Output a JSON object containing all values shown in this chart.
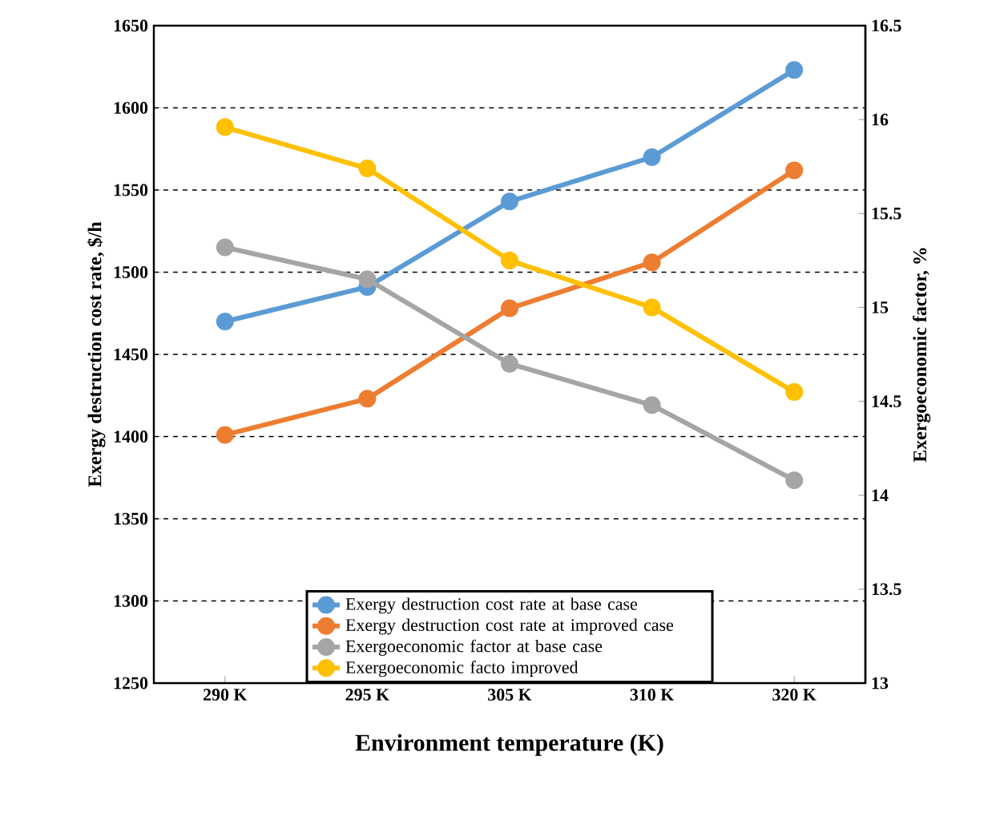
{
  "chart_data": {
    "type": "line",
    "xlabel": "Environment temperature (K)",
    "ylabel": "Exergy destruction cost rate, $/h",
    "y2label": "Exergoeconomic factor, %",
    "categories": [
      "290 K",
      "295 K",
      "305 K",
      "310 K",
      "320 K"
    ],
    "series": [
      {
        "name": "Exergy destruction cost rate at base case",
        "color": "#5b9bd5",
        "values": [
          1470,
          1491,
          1543,
          1570,
          1623
        ]
      },
      {
        "name": "Exergy destruction cost rate at improved case",
        "color": "#ed7d31",
        "values": [
          1401,
          1423,
          1478,
          1506,
          1562
        ]
      },
      {
        "name": "Exergoeconomic factor at base case",
        "color": "#a5a5a5",
        "values": [
          15.32,
          15.15,
          14.7,
          14.48,
          14.08
        ],
        "axis": "y2"
      },
      {
        "name": "Exergoeconomic facto improved",
        "color": "#ffc000",
        "values": [
          15.96,
          15.74,
          15.25,
          15.0,
          14.55
        ],
        "axis": "y2"
      }
    ],
    "ylim": [
      1250,
      1650
    ],
    "yticks": [
      1250,
      1300,
      1350,
      1400,
      1450,
      1500,
      1550,
      1600,
      1650
    ],
    "y2lim": [
      13,
      16.5
    ],
    "y2ticks": [
      13,
      13.5,
      14,
      14.5,
      15,
      15.5,
      16,
      16.5
    ],
    "grid": "y",
    "legend": "bottom",
    "marker": "circle",
    "line_style": "solid"
  }
}
